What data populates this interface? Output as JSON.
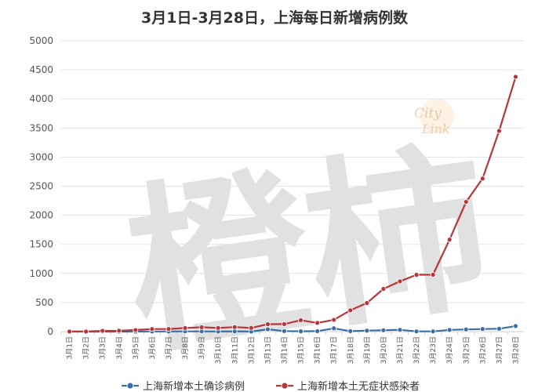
{
  "chart_data": {
    "type": "line",
    "title": "3月1日-3月28日，上海每日新增病例数",
    "categories": [
      "3月1日",
      "3月2日",
      "3月3日",
      "3月4日",
      "3月5日",
      "3月6日",
      "3月7日",
      "3月8日",
      "3月9日",
      "3月10日",
      "3月11日",
      "3月12日",
      "3月13日",
      "3月14日",
      "3月15日",
      "3月16日",
      "3月17日",
      "3月18日",
      "3月19日",
      "3月20日",
      "3月21日",
      "3月22日",
      "3月23日",
      "3月24日",
      "3月25日",
      "3月26日",
      "3月27日",
      "3月28日"
    ],
    "ylim": [
      0,
      5000
    ],
    "yticks": [
      0,
      500,
      1000,
      1500,
      2000,
      2500,
      3000,
      3500,
      4000,
      4500,
      5000
    ],
    "grid": true,
    "legend_position": "bottom",
    "series": [
      {
        "name": "上海新增本土确诊病例",
        "color": "#3a6ea5",
        "values": [
          1,
          0,
          0,
          0,
          2,
          3,
          3,
          4,
          4,
          3,
          5,
          1,
          41,
          9,
          5,
          8,
          57,
          8,
          17,
          24,
          31,
          4,
          4,
          29,
          38,
          45,
          50,
          96
        ]
      },
      {
        "name": "上海新增本土无症状感染者",
        "color": "#b8353a",
        "values": [
          2,
          2,
          14,
          16,
          28,
          45,
          45,
          62,
          76,
          64,
          78,
          64,
          128,
          130,
          197,
          150,
          203,
          366,
          492,
          734,
          865,
          977,
          979,
          1582,
          2231,
          2631,
          3450,
          4381
        ]
      }
    ]
  },
  "watermark": {
    "chars": "橙柿",
    "logo_top": "City",
    "logo_bottom": "Link"
  }
}
